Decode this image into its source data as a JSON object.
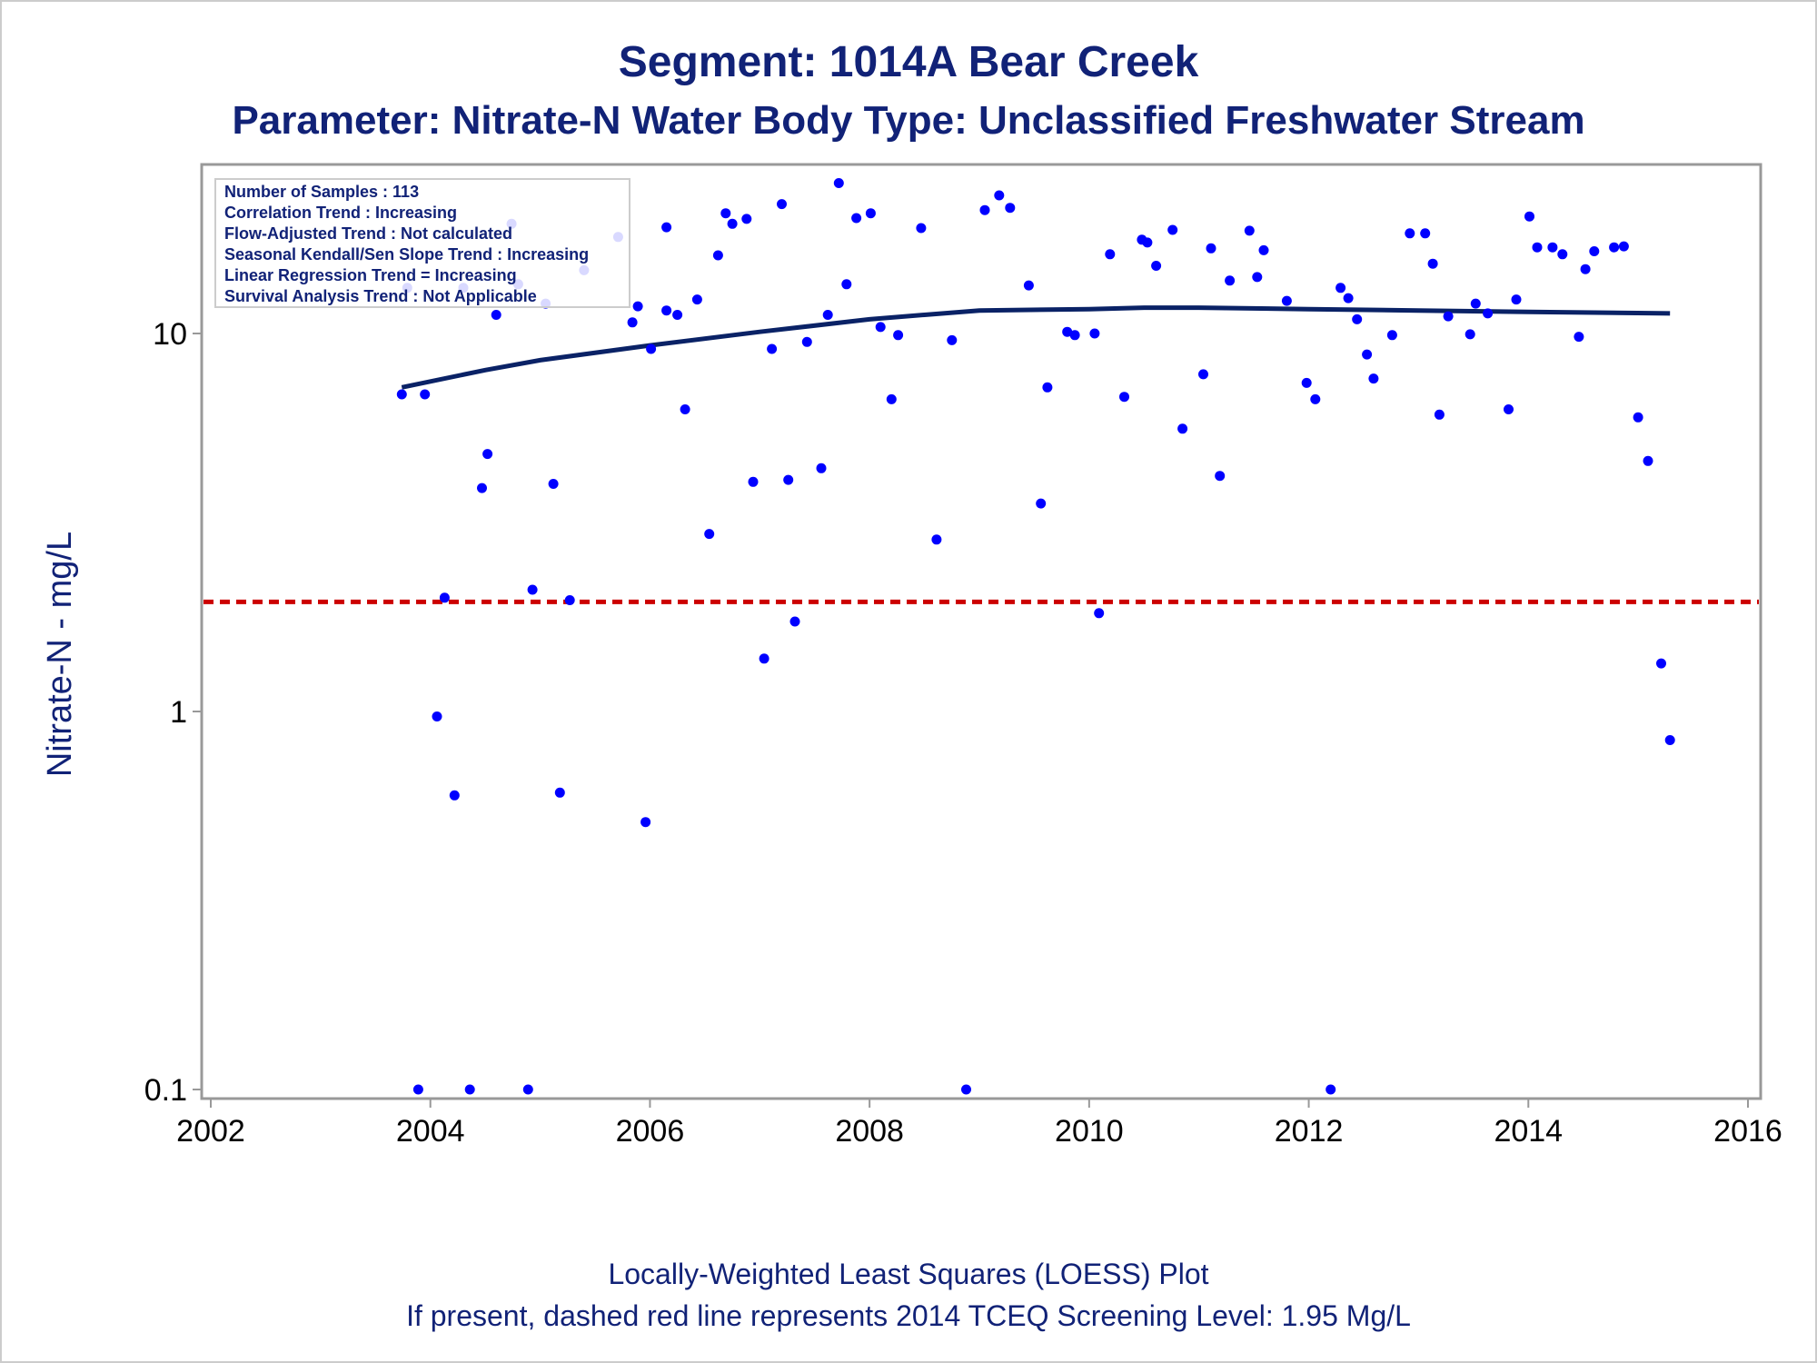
{
  "colors": {
    "text": "#112277",
    "point": "#0000ff",
    "loess": "#0a2266",
    "screening_line": "#cc0000",
    "frame": "#999999",
    "border": "#cccccc"
  },
  "chart_data": {
    "type": "scatter",
    "title": "Segment: 1014A  Bear Creek",
    "subtitle": "Parameter: Nitrate-N   Water Body Type: Unclassified Freshwater Stream",
    "xlabel": "",
    "ylabel": "Nitrate-N - mg/L",
    "y_scale": "log",
    "xlim": [
      2002,
      2016
    ],
    "ylim": [
      0.1,
      25
    ],
    "grid": false,
    "x_ticks": [
      2002,
      2004,
      2006,
      2008,
      2010,
      2012,
      2014,
      2016
    ],
    "y_ticks": [
      {
        "value": 0.1,
        "label": "0.1"
      },
      {
        "value": 1,
        "label": "1"
      },
      {
        "value": 10,
        "label": "10"
      }
    ],
    "inset_placement": "top-left",
    "inset_lines": [
      "Number of Samples : 113",
      "Correlation Trend : Increasing",
      "Flow-Adjusted Trend : Not calculated",
      "Seasonal Kendall/Sen Slope Trend : Increasing",
      "Linear Regression Trend = Increasing",
      "Survival Analysis Trend : Not Applicable"
    ],
    "footnotes": [
      "Locally-Weighted Least Squares (LOESS) Plot",
      "If present, dashed red line represents 2014 TCEQ Screening Level: 1.95 Mg/L"
    ],
    "screening_level": 1.95,
    "series": [
      {
        "type": "scatter",
        "points": [
          {
            "x": 2003.74,
            "y": 6.9
          },
          {
            "x": 2003.79,
            "y": 13.2
          },
          {
            "x": 2003.89,
            "y": 0.1
          },
          {
            "x": 2003.95,
            "y": 6.9
          },
          {
            "x": 2004.06,
            "y": 0.97
          },
          {
            "x": 2004.13,
            "y": 2.0
          },
          {
            "x": 2004.22,
            "y": 0.6
          },
          {
            "x": 2004.3,
            "y": 13.2
          },
          {
            "x": 2004.36,
            "y": 0.1
          },
          {
            "x": 2004.47,
            "y": 3.9
          },
          {
            "x": 2004.52,
            "y": 4.8
          },
          {
            "x": 2004.6,
            "y": 11.2
          },
          {
            "x": 2004.74,
            "y": 19.5
          },
          {
            "x": 2004.8,
            "y": 13.5
          },
          {
            "x": 2004.89,
            "y": 0.1
          },
          {
            "x": 2004.93,
            "y": 2.1
          },
          {
            "x": 2005.05,
            "y": 12.0
          },
          {
            "x": 2005.12,
            "y": 4.0
          },
          {
            "x": 2005.18,
            "y": 0.61
          },
          {
            "x": 2005.27,
            "y": 1.97
          },
          {
            "x": 2005.4,
            "y": 14.7
          },
          {
            "x": 2005.71,
            "y": 18.0
          },
          {
            "x": 2005.84,
            "y": 10.7
          },
          {
            "x": 2005.89,
            "y": 11.8
          },
          {
            "x": 2005.96,
            "y": 0.51
          },
          {
            "x": 2006.01,
            "y": 9.1
          },
          {
            "x": 2006.15,
            "y": 19.1
          },
          {
            "x": 2006.15,
            "y": 11.5
          },
          {
            "x": 2006.25,
            "y": 11.2
          },
          {
            "x": 2006.32,
            "y": 6.3
          },
          {
            "x": 2006.43,
            "y": 12.3
          },
          {
            "x": 2006.54,
            "y": 2.95
          },
          {
            "x": 2006.62,
            "y": 16.1
          },
          {
            "x": 2006.69,
            "y": 20.8
          },
          {
            "x": 2006.75,
            "y": 19.5
          },
          {
            "x": 2006.88,
            "y": 20.1
          },
          {
            "x": 2006.94,
            "y": 4.05
          },
          {
            "x": 2007.04,
            "y": 1.38
          },
          {
            "x": 2007.11,
            "y": 9.1
          },
          {
            "x": 2007.2,
            "y": 22.0
          },
          {
            "x": 2007.26,
            "y": 4.1
          },
          {
            "x": 2007.32,
            "y": 1.73
          },
          {
            "x": 2007.43,
            "y": 9.5
          },
          {
            "x": 2007.56,
            "y": 4.4
          },
          {
            "x": 2007.62,
            "y": 11.2
          },
          {
            "x": 2007.72,
            "y": 25.0
          },
          {
            "x": 2007.79,
            "y": 13.5
          },
          {
            "x": 2007.88,
            "y": 20.2
          },
          {
            "x": 2008.01,
            "y": 20.8
          },
          {
            "x": 2008.1,
            "y": 10.4
          },
          {
            "x": 2008.2,
            "y": 6.7
          },
          {
            "x": 2008.26,
            "y": 9.9
          },
          {
            "x": 2008.47,
            "y": 19.0
          },
          {
            "x": 2008.61,
            "y": 2.85
          },
          {
            "x": 2008.75,
            "y": 9.6
          },
          {
            "x": 2008.88,
            "y": 0.1
          },
          {
            "x": 2009.05,
            "y": 21.2
          },
          {
            "x": 2009.18,
            "y": 23.2
          },
          {
            "x": 2009.28,
            "y": 21.5
          },
          {
            "x": 2009.45,
            "y": 13.4
          },
          {
            "x": 2009.56,
            "y": 3.55
          },
          {
            "x": 2009.62,
            "y": 7.2
          },
          {
            "x": 2009.8,
            "y": 10.1
          },
          {
            "x": 2009.87,
            "y": 9.9
          },
          {
            "x": 2010.05,
            "y": 10.0
          },
          {
            "x": 2010.09,
            "y": 1.82
          },
          {
            "x": 2010.19,
            "y": 16.2
          },
          {
            "x": 2010.32,
            "y": 6.8
          },
          {
            "x": 2010.48,
            "y": 17.7
          },
          {
            "x": 2010.53,
            "y": 17.4
          },
          {
            "x": 2010.61,
            "y": 15.1
          },
          {
            "x": 2010.76,
            "y": 18.8
          },
          {
            "x": 2010.85,
            "y": 5.6
          },
          {
            "x": 2011.04,
            "y": 7.8
          },
          {
            "x": 2011.11,
            "y": 16.8
          },
          {
            "x": 2011.19,
            "y": 4.2
          },
          {
            "x": 2011.28,
            "y": 13.8
          },
          {
            "x": 2011.46,
            "y": 18.7
          },
          {
            "x": 2011.53,
            "y": 14.1
          },
          {
            "x": 2011.59,
            "y": 16.6
          },
          {
            "x": 2011.8,
            "y": 12.2
          },
          {
            "x": 2011.98,
            "y": 7.4
          },
          {
            "x": 2012.06,
            "y": 6.7
          },
          {
            "x": 2012.2,
            "y": 0.1
          },
          {
            "x": 2012.29,
            "y": 13.2
          },
          {
            "x": 2012.36,
            "y": 12.4
          },
          {
            "x": 2012.44,
            "y": 10.9
          },
          {
            "x": 2012.53,
            "y": 8.8
          },
          {
            "x": 2012.59,
            "y": 7.6
          },
          {
            "x": 2012.76,
            "y": 9.9
          },
          {
            "x": 2012.92,
            "y": 18.4
          },
          {
            "x": 2013.06,
            "y": 18.4
          },
          {
            "x": 2013.13,
            "y": 15.3
          },
          {
            "x": 2013.19,
            "y": 6.1
          },
          {
            "x": 2013.27,
            "y": 11.1
          },
          {
            "x": 2013.47,
            "y": 9.95
          },
          {
            "x": 2013.52,
            "y": 12.0
          },
          {
            "x": 2013.63,
            "y": 11.3
          },
          {
            "x": 2013.82,
            "y": 6.3
          },
          {
            "x": 2013.89,
            "y": 12.3
          },
          {
            "x": 2014.01,
            "y": 20.4
          },
          {
            "x": 2014.08,
            "y": 16.9
          },
          {
            "x": 2014.22,
            "y": 16.9
          },
          {
            "x": 2014.31,
            "y": 16.2
          },
          {
            "x": 2014.46,
            "y": 9.8
          },
          {
            "x": 2014.52,
            "y": 14.8
          },
          {
            "x": 2014.6,
            "y": 16.5
          },
          {
            "x": 2014.78,
            "y": 16.9
          },
          {
            "x": 2014.87,
            "y": 17.0
          },
          {
            "x": 2015.0,
            "y": 6.0
          },
          {
            "x": 2015.09,
            "y": 4.6
          },
          {
            "x": 2015.21,
            "y": 1.34
          },
          {
            "x": 2015.29,
            "y": 0.84
          }
        ]
      },
      {
        "type": "line",
        "smoother": "LOESS",
        "points": [
          {
            "x": 2003.74,
            "y": 7.2
          },
          {
            "x": 2004.5,
            "y": 8.0
          },
          {
            "x": 2005.0,
            "y": 8.5
          },
          {
            "x": 2006.0,
            "y": 9.3
          },
          {
            "x": 2007.0,
            "y": 10.1
          },
          {
            "x": 2008.0,
            "y": 10.9
          },
          {
            "x": 2008.5,
            "y": 11.2
          },
          {
            "x": 2009.0,
            "y": 11.5
          },
          {
            "x": 2010.0,
            "y": 11.6
          },
          {
            "x": 2010.5,
            "y": 11.7
          },
          {
            "x": 2011.0,
            "y": 11.7
          },
          {
            "x": 2012.0,
            "y": 11.6
          },
          {
            "x": 2013.0,
            "y": 11.5
          },
          {
            "x": 2014.0,
            "y": 11.4
          },
          {
            "x": 2015.29,
            "y": 11.3
          }
        ]
      }
    ]
  }
}
